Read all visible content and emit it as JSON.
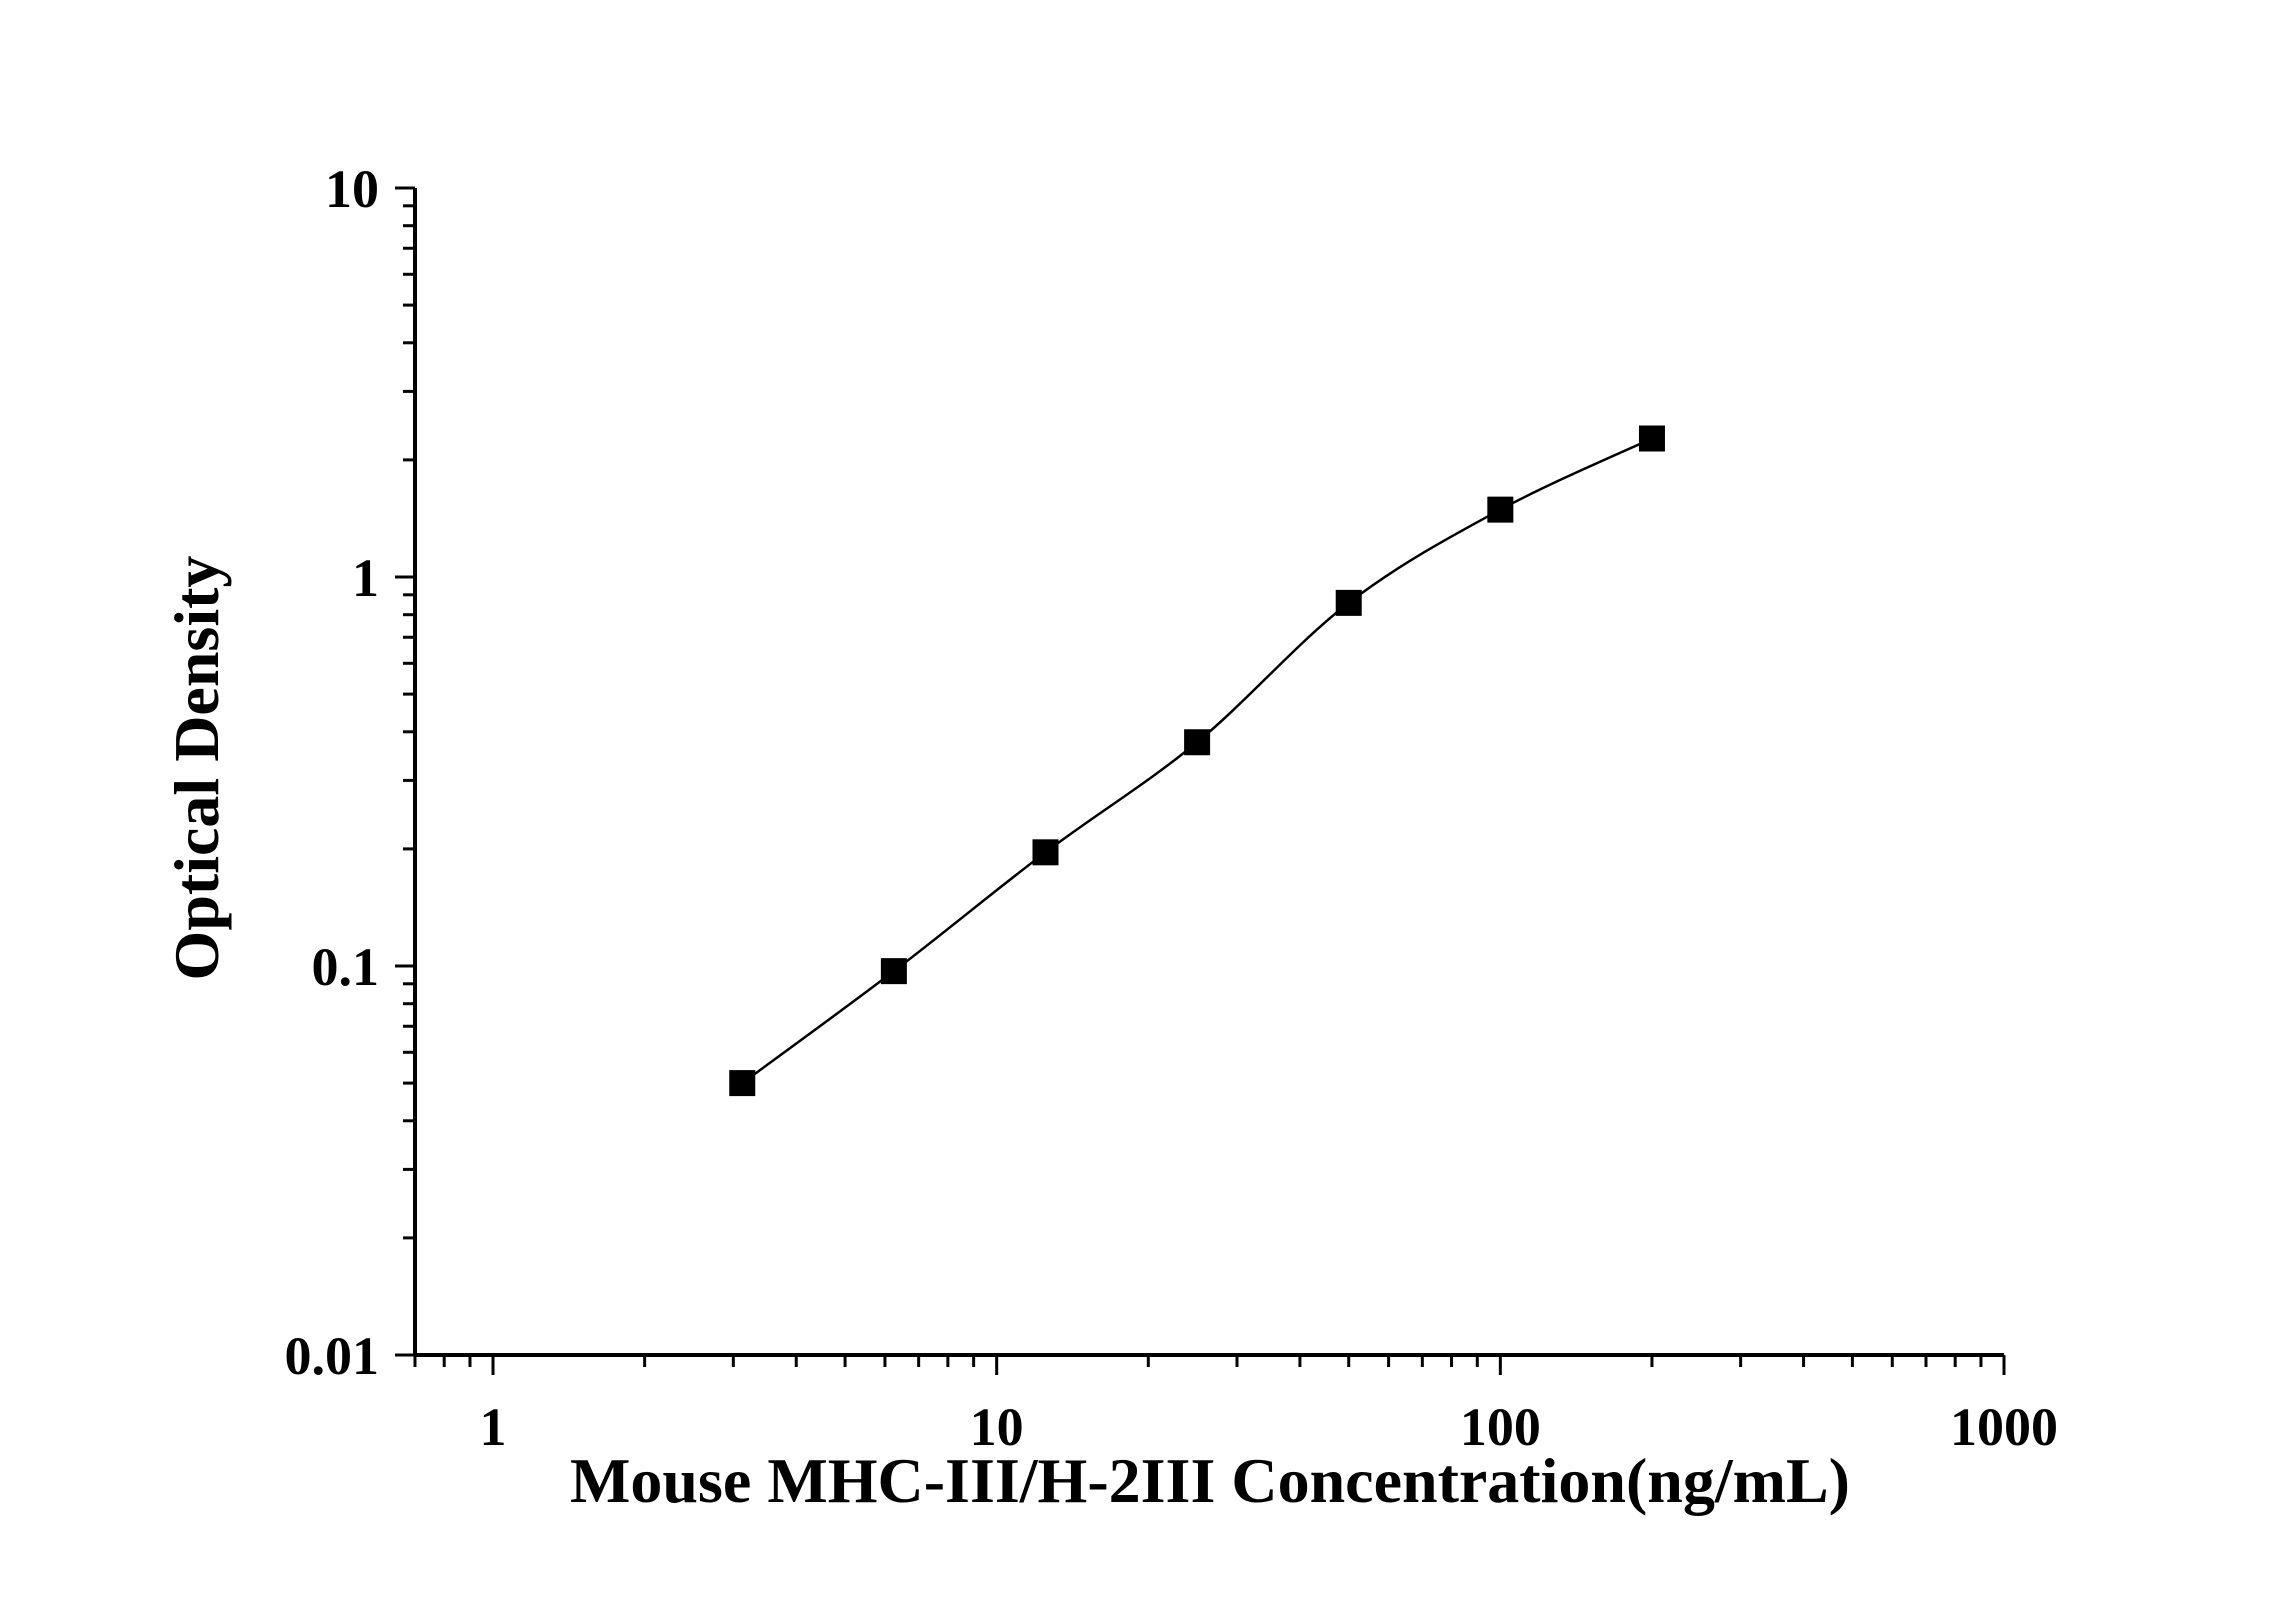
{
  "chart_data": {
    "type": "line",
    "xlabel": "Mouse MHC-III/H-2III Concentration(ng/mL)",
    "ylabel": "Optical Density",
    "x_scale": "log",
    "y_scale": "log",
    "xlim": [
      0.7,
      1000
    ],
    "ylim": [
      0.01,
      10
    ],
    "x_ticks": [
      1,
      10,
      100,
      1000
    ],
    "x_tick_labels": [
      "1",
      "10",
      "100",
      "1000"
    ],
    "y_ticks": [
      0.01,
      0.1,
      1,
      10
    ],
    "y_tick_labels": [
      "0.01",
      "0.1",
      "1",
      "10"
    ],
    "grid": false,
    "marker": "square",
    "color": "#000000",
    "series": [
      {
        "x": [
          3.125,
          6.25,
          12.5,
          25,
          50,
          100,
          200
        ],
        "y": [
          0.05,
          0.097,
          0.196,
          0.376,
          0.858,
          1.49,
          2.27
        ]
      }
    ]
  }
}
